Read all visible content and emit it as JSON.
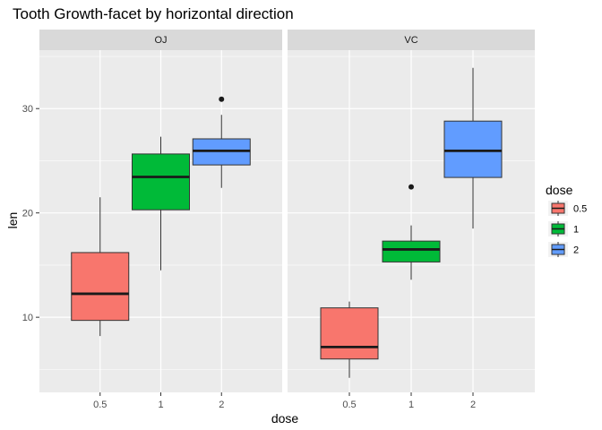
{
  "chart_data": {
    "type": "boxplot",
    "title": "Tooth Growth-facet by horizontal direction",
    "xlabel": "dose",
    "ylabel": "len",
    "categories": [
      "0.5",
      "1",
      "2"
    ],
    "ylim": [
      2.8,
      35.6
    ],
    "yticks": [
      10,
      20,
      30
    ],
    "grid": true,
    "legend": {
      "title": "dose",
      "position": "right",
      "items": [
        {
          "label": "0.5",
          "color": "#F8766D"
        },
        {
          "label": "1",
          "color": "#00BA38"
        },
        {
          "label": "2",
          "color": "#619CFF"
        }
      ]
    },
    "facets": [
      {
        "label": "OJ",
        "boxes": [
          {
            "category": "0.5",
            "whisker_low": 8.2,
            "q1": 9.7,
            "median": 12.25,
            "q3": 16.2,
            "whisker_high": 21.5,
            "outliers": []
          },
          {
            "category": "1",
            "whisker_low": 14.5,
            "q1": 20.3,
            "median": 23.45,
            "q3": 25.65,
            "whisker_high": 27.3,
            "outliers": []
          },
          {
            "category": "2",
            "whisker_low": 22.4,
            "q1": 24.6,
            "median": 25.95,
            "q3": 27.1,
            "whisker_high": 29.4,
            "outliers": [
              30.9
            ]
          }
        ]
      },
      {
        "label": "VC",
        "boxes": [
          {
            "category": "0.5",
            "whisker_low": 4.2,
            "q1": 6.0,
            "median": 7.15,
            "q3": 10.9,
            "whisker_high": 11.5,
            "outliers": []
          },
          {
            "category": "1",
            "whisker_low": 13.6,
            "q1": 15.3,
            "median": 16.5,
            "q3": 17.3,
            "whisker_high": 18.8,
            "outliers": [
              22.5
            ]
          },
          {
            "category": "2",
            "whisker_low": 18.5,
            "q1": 23.4,
            "median": 25.95,
            "q3": 28.8,
            "whisker_high": 33.9,
            "outliers": []
          }
        ]
      }
    ]
  }
}
